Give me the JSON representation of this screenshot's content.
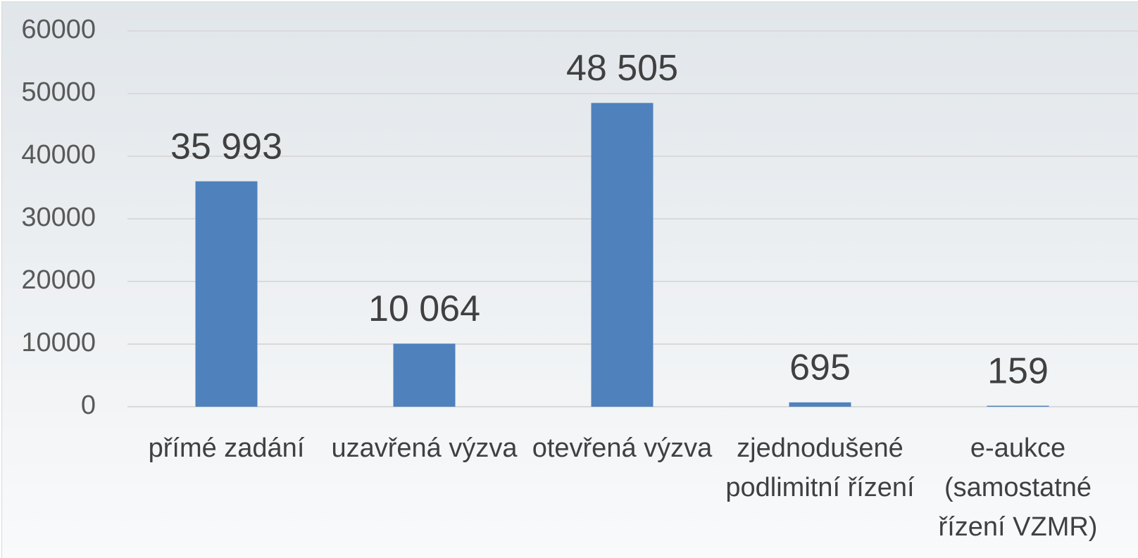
{
  "chart_data": {
    "type": "bar",
    "categories": [
      "přímé zadání",
      "uzavřená výzva",
      "otevřená výzva",
      "zjednodušené podlimitní řízení",
      "e-aukce (samostatné řízení VZMR)"
    ],
    "values": [
      35993,
      10064,
      48505,
      695,
      159
    ],
    "value_labels": [
      "35 993",
      "10 064",
      "48 505",
      "695",
      "159"
    ],
    "color": "#4f81bd",
    "ylim": [
      0,
      60000
    ],
    "yticks": [
      0,
      10000,
      20000,
      30000,
      40000,
      50000,
      60000
    ],
    "grid": true
  }
}
